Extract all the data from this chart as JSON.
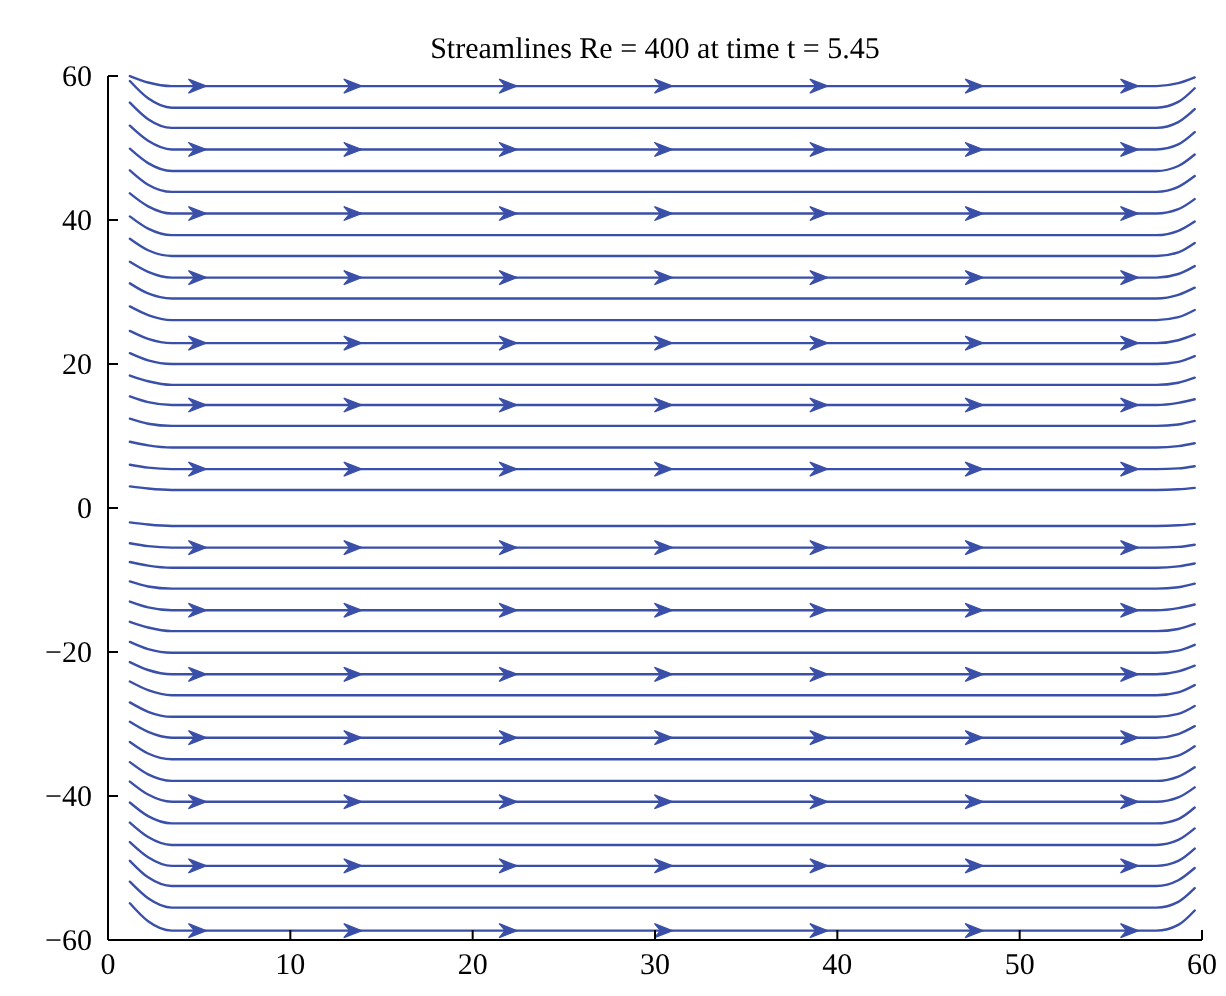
{
  "chart_data": {
    "type": "line",
    "title": "Streamlines Re = 400 at time t = 5.45",
    "color": "#3a4fa8",
    "x": [
      1.2,
      2.2,
      3.5,
      57.5,
      58.7,
      59.6
    ],
    "xlim": [
      0,
      60
    ],
    "xticks": [
      0,
      10,
      20,
      30,
      40,
      50,
      60
    ],
    "ylim": [
      -60,
      60
    ],
    "yticks": [
      {
        "value": -60,
        "label": "−60"
      },
      {
        "value": -40,
        "label": "−40"
      },
      {
        "value": -20,
        "label": "−20"
      },
      0,
      20,
      40,
      60
    ],
    "series": [
      {
        "values": [
          60.0,
          59.1,
          58.6,
          58.6,
          59.0,
          59.8
        ]
      },
      {
        "values": [
          59.3,
          56.9,
          55.6,
          55.6,
          56.4,
          58.3
        ]
      },
      {
        "values": [
          56.3,
          54.0,
          52.8,
          52.8,
          53.6,
          55.4
        ]
      },
      {
        "values": [
          53.1,
          51.0,
          49.8,
          49.8,
          50.5,
          52.2
        ]
      },
      {
        "values": [
          49.9,
          47.9,
          46.8,
          46.8,
          47.5,
          49.1
        ]
      },
      {
        "values": [
          46.9,
          44.9,
          43.9,
          43.9,
          44.6,
          46.1
        ]
      },
      {
        "values": [
          43.7,
          41.9,
          40.9,
          40.9,
          41.5,
          42.9
        ]
      },
      {
        "values": [
          40.5,
          38.8,
          37.9,
          37.9,
          38.5,
          39.8
        ]
      },
      {
        "values": [
          37.4,
          35.8,
          35.0,
          35.0,
          35.5,
          36.8
        ]
      },
      {
        "values": [
          34.2,
          32.8,
          32.0,
          32.0,
          32.5,
          33.6
        ]
      },
      {
        "values": [
          31.2,
          29.8,
          29.1,
          29.1,
          29.6,
          30.6
        ]
      },
      {
        "values": [
          28.0,
          26.8,
          26.1,
          26.1,
          26.5,
          27.5
        ]
      },
      {
        "values": [
          24.6,
          23.5,
          22.9,
          22.9,
          23.3,
          24.1
        ]
      },
      {
        "values": [
          21.5,
          20.5,
          20.0,
          20.0,
          20.3,
          21.1
        ]
      },
      {
        "values": [
          18.4,
          17.6,
          17.1,
          17.1,
          17.4,
          18.1
        ]
      },
      {
        "values": [
          15.5,
          14.7,
          14.3,
          14.3,
          14.6,
          15.1
        ]
      },
      {
        "values": [
          12.4,
          11.7,
          11.4,
          11.4,
          11.6,
          12.1
        ]
      },
      {
        "values": [
          9.2,
          8.7,
          8.4,
          8.4,
          8.6,
          9.0
        ]
      },
      {
        "values": [
          6.0,
          5.6,
          5.4,
          5.4,
          5.5,
          5.8
        ]
      },
      {
        "values": [
          3.0,
          2.7,
          2.5,
          2.5,
          2.6,
          2.8
        ]
      },
      {
        "values": [
          -2.0,
          -2.3,
          -2.5,
          -2.5,
          -2.4,
          -2.2
        ]
      },
      {
        "values": [
          -4.9,
          -5.3,
          -5.5,
          -5.5,
          -5.4,
          -5.1
        ]
      },
      {
        "values": [
          -7.5,
          -8.0,
          -8.3,
          -8.3,
          -8.1,
          -7.7
        ]
      },
      {
        "values": [
          -10.2,
          -10.9,
          -11.2,
          -11.2,
          -11.0,
          -10.5
        ]
      },
      {
        "values": [
          -13.0,
          -13.8,
          -14.2,
          -14.2,
          -13.9,
          -13.4
        ]
      },
      {
        "values": [
          -15.8,
          -16.6,
          -17.1,
          -17.1,
          -16.8,
          -16.1
        ]
      },
      {
        "values": [
          -18.6,
          -19.6,
          -20.1,
          -20.1,
          -19.8,
          -19.0
        ]
      },
      {
        "values": [
          -21.4,
          -22.5,
          -23.1,
          -23.1,
          -22.7,
          -21.9
        ]
      },
      {
        "values": [
          -24.1,
          -25.3,
          -26.0,
          -26.0,
          -25.6,
          -24.6
        ]
      },
      {
        "values": [
          -27.0,
          -28.3,
          -29.0,
          -29.0,
          -28.6,
          -27.5
        ]
      },
      {
        "values": [
          -29.7,
          -31.1,
          -31.9,
          -31.9,
          -31.4,
          -30.3
        ]
      },
      {
        "values": [
          -32.5,
          -34.1,
          -34.9,
          -34.9,
          -34.4,
          -33.1
        ]
      },
      {
        "values": [
          -35.3,
          -37.0,
          -37.9,
          -37.9,
          -37.3,
          -36.0
        ]
      },
      {
        "values": [
          -38.0,
          -39.8,
          -40.8,
          -40.8,
          -40.2,
          -38.8
        ]
      },
      {
        "values": [
          -40.9,
          -42.8,
          -43.8,
          -43.8,
          -43.2,
          -41.6
        ]
      },
      {
        "values": [
          -43.7,
          -45.7,
          -46.8,
          -46.8,
          -46.1,
          -44.5
        ]
      },
      {
        "values": [
          -46.4,
          -48.5,
          -49.7,
          -49.7,
          -49.0,
          -47.3
        ]
      },
      {
        "values": [
          -49.0,
          -51.3,
          -52.5,
          -52.5,
          -51.7,
          -50.0
        ]
      },
      {
        "values": [
          -51.9,
          -54.2,
          -55.5,
          -55.5,
          -54.7,
          -52.8
        ]
      },
      {
        "values": [
          -54.9,
          -57.4,
          -58.7,
          -58.7,
          -57.9,
          -55.9
        ]
      }
    ]
  }
}
